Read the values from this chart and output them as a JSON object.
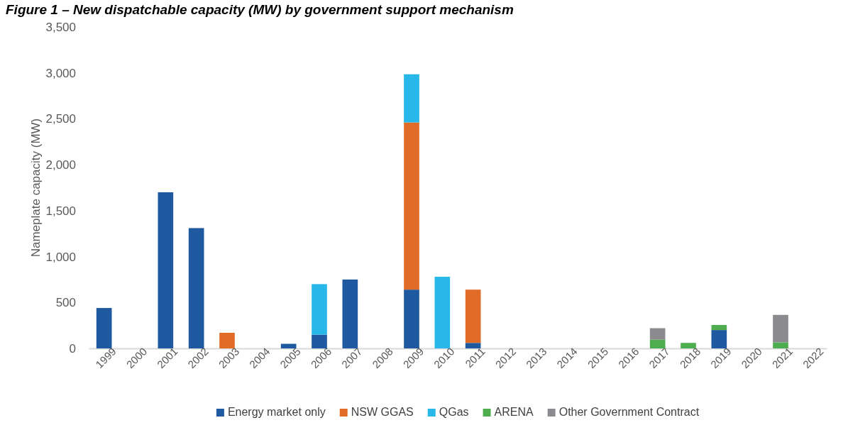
{
  "chart_data": {
    "type": "bar",
    "stacked": true,
    "title": "Figure 1 – New dispatchable capacity (MW) by government support mechanism",
    "ylabel": "Nameplate capacity (MW)",
    "categories": [
      "1999",
      "2000",
      "2001",
      "2002",
      "2003",
      "2004",
      "2005",
      "2006",
      "2007",
      "2008",
      "2009",
      "2010",
      "2011",
      "2012",
      "2013",
      "2014",
      "2015",
      "2016",
      "2017",
      "2018",
      "2019",
      "2020",
      "2021",
      "2022"
    ],
    "series": [
      {
        "name": "Energy market only",
        "color": "#1f5aa0",
        "values": [
          440,
          null,
          1700,
          1310,
          null,
          null,
          50,
          150,
          750,
          null,
          640,
          null,
          60,
          null,
          null,
          null,
          null,
          null,
          null,
          null,
          200,
          null,
          null,
          null
        ]
      },
      {
        "name": "NSW GGAS",
        "color": "#e06c27",
        "values": [
          null,
          null,
          null,
          null,
          170,
          null,
          null,
          null,
          null,
          null,
          1820,
          null,
          580,
          null,
          null,
          null,
          null,
          null,
          null,
          null,
          null,
          null,
          null,
          null
        ]
      },
      {
        "name": "QGas",
        "color": "#27b8e9",
        "values": [
          null,
          null,
          null,
          null,
          null,
          null,
          null,
          550,
          null,
          null,
          525,
          780,
          null,
          null,
          null,
          null,
          null,
          null,
          null,
          null,
          null,
          null,
          null,
          null
        ]
      },
      {
        "name": "ARENA",
        "color": "#4eae4f",
        "values": [
          null,
          null,
          null,
          null,
          null,
          null,
          null,
          null,
          null,
          null,
          null,
          null,
          null,
          null,
          null,
          null,
          null,
          null,
          95,
          60,
          55,
          null,
          65,
          null
        ]
      },
      {
        "name": "Other Government Contract",
        "color": "#8b8a8e",
        "values": [
          null,
          null,
          null,
          null,
          null,
          null,
          null,
          null,
          null,
          null,
          null,
          null,
          null,
          null,
          null,
          null,
          null,
          null,
          125,
          null,
          null,
          null,
          300,
          null
        ]
      }
    ],
    "ylim": [
      0,
      3500
    ],
    "yticks": [
      {
        "value": 0,
        "label": "0"
      },
      {
        "value": 500,
        "label": "500"
      },
      {
        "value": 1000,
        "label": "1,000"
      },
      {
        "value": 1500,
        "label": "1,500"
      },
      {
        "value": 2000,
        "label": "2,000"
      },
      {
        "value": 2500,
        "label": "2,500"
      },
      {
        "value": 3000,
        "label": "3,000"
      },
      {
        "value": 3500,
        "label": "3,500"
      }
    ],
    "grid": false,
    "legend": "bottom"
  }
}
